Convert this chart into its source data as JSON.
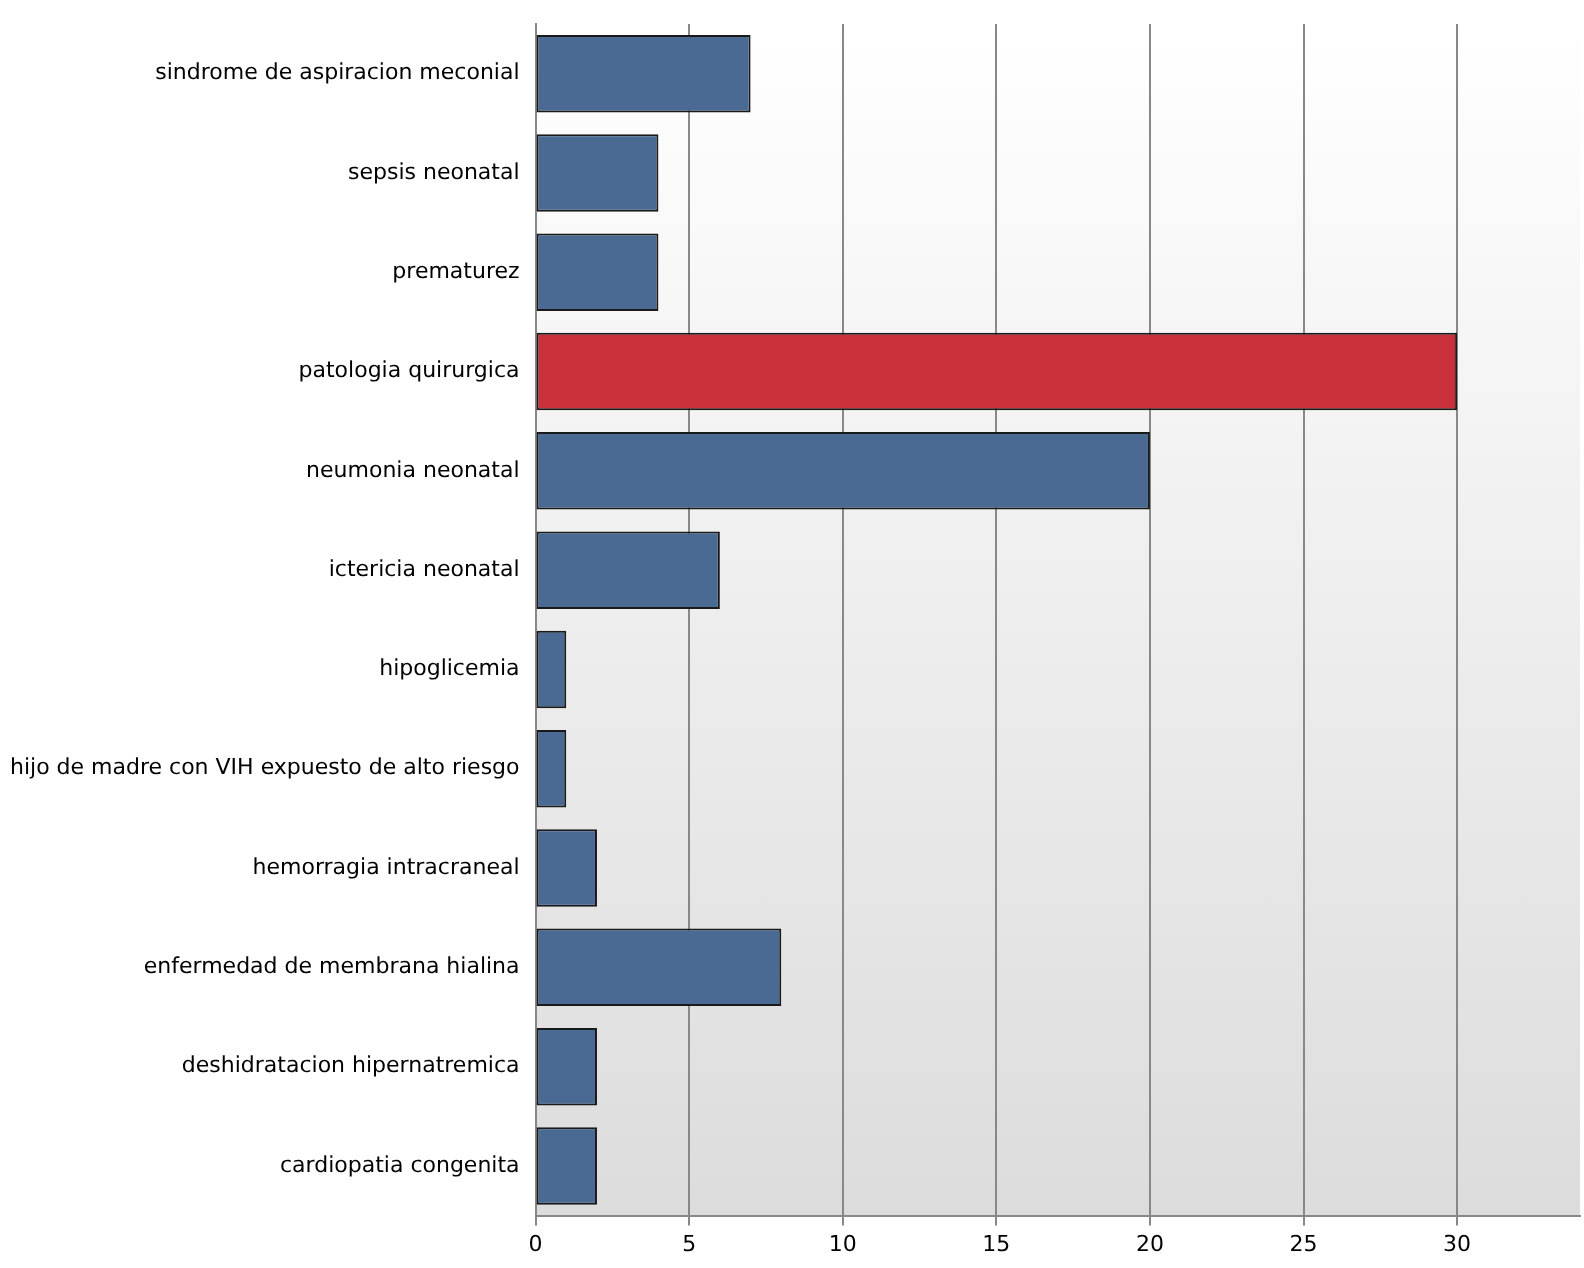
{
  "chart_data": {
    "type": "bar",
    "orientation": "horizontal",
    "categories": [
      "sindrome de aspiracion meconial",
      "sepsis neonatal",
      "prematurez",
      "patologia quirurgica",
      "neumonia neonatal",
      "ictericia neonatal",
      "hipoglicemia",
      "hijo de madre con VIH expuesto de alto riesgo",
      "hemorragia intracraneal",
      "enfermedad de membrana hialina",
      "deshidratacion hipernatremica",
      "cardiopatia congenita"
    ],
    "values": [
      7,
      4,
      4,
      30,
      20,
      6,
      1,
      1,
      2,
      8,
      2,
      2
    ],
    "colors": [
      "#4a6a93",
      "#4a6a93",
      "#4a6a93",
      "#c8303c",
      "#4a6a93",
      "#4a6a93",
      "#4a6a93",
      "#4a6a93",
      "#4a6a93",
      "#4a6a93",
      "#4a6a93",
      "#4a6a93"
    ],
    "xlim": [
      0,
      34
    ],
    "xticks": [
      0,
      5,
      10,
      15,
      20,
      25,
      30
    ],
    "grid": "x",
    "legend": false
  }
}
